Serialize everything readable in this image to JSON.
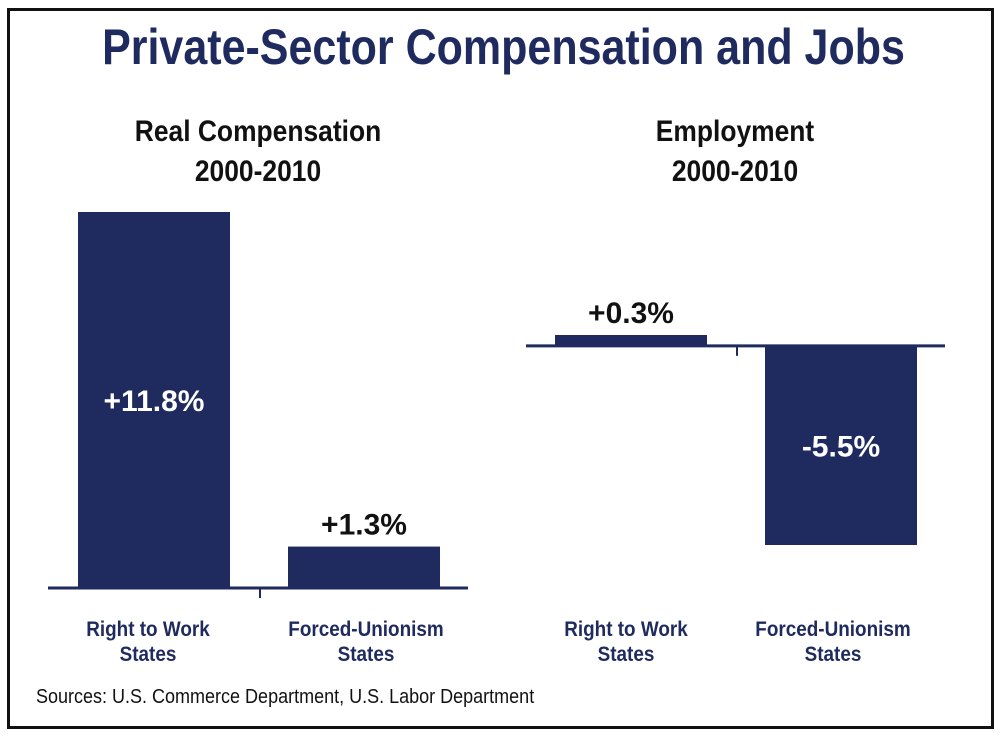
{
  "title": "Private-Sector Compensation and Jobs",
  "sources": "Sources: U.S. Commerce Department, U.S. Labor Department",
  "colors": {
    "bar": "#1f2a5e",
    "axis": "#1f2a5e",
    "title": "#1f2a5e",
    "inside_label": "#ffffff",
    "outside_label": "#111111"
  },
  "chart_data": [
    {
      "type": "bar",
      "title_lines": [
        "Real Compensation",
        "2000-2010"
      ],
      "categories": [
        [
          "Right to Work",
          "States"
        ],
        [
          "Forced-Unionism",
          "States"
        ]
      ],
      "values": [
        11.8,
        1.3
      ],
      "value_labels": [
        "+11.8%",
        "+1.3%"
      ],
      "unit": "%",
      "ylim": [
        0,
        11.8
      ],
      "grid": false
    },
    {
      "type": "bar",
      "title_lines": [
        "Employment",
        "2000-2010"
      ],
      "categories": [
        [
          "Right to Work",
          "States"
        ],
        [
          "Forced-Unionism",
          "States"
        ]
      ],
      "values": [
        0.3,
        -5.5
      ],
      "value_labels": [
        "+0.3%",
        "-5.5%"
      ],
      "unit": "%",
      "ylim": [
        -5.5,
        0.3
      ],
      "grid": false
    }
  ]
}
